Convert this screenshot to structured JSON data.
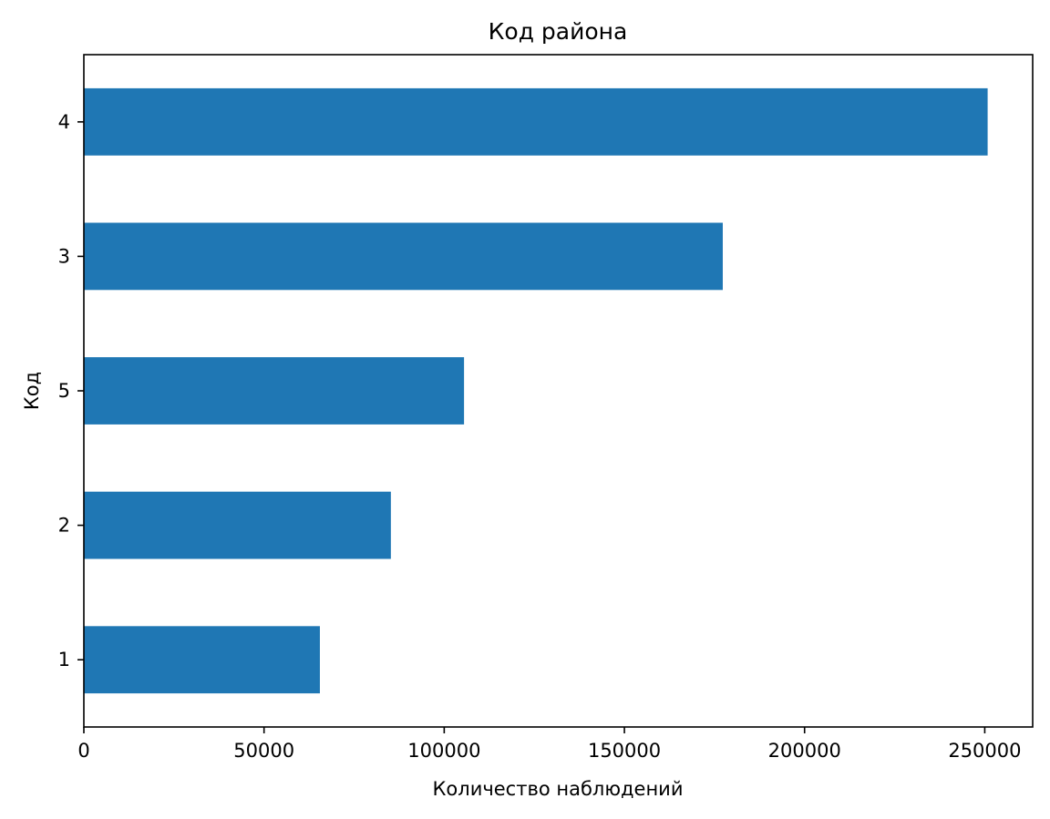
{
  "chart_data": {
    "type": "bar",
    "orientation": "horizontal",
    "title": "Код района",
    "xlabel": "Количество наблюдений",
    "ylabel": "Код",
    "categories": [
      "1",
      "2",
      "5",
      "3",
      "4"
    ],
    "values": [
      65500,
      85200,
      105500,
      177300,
      250800
    ],
    "xlim": [
      0,
      263300
    ],
    "xticks": [
      0,
      50000,
      100000,
      150000,
      200000,
      250000
    ],
    "grid": false,
    "legend": "none",
    "bar_color": "#1f77b4"
  }
}
